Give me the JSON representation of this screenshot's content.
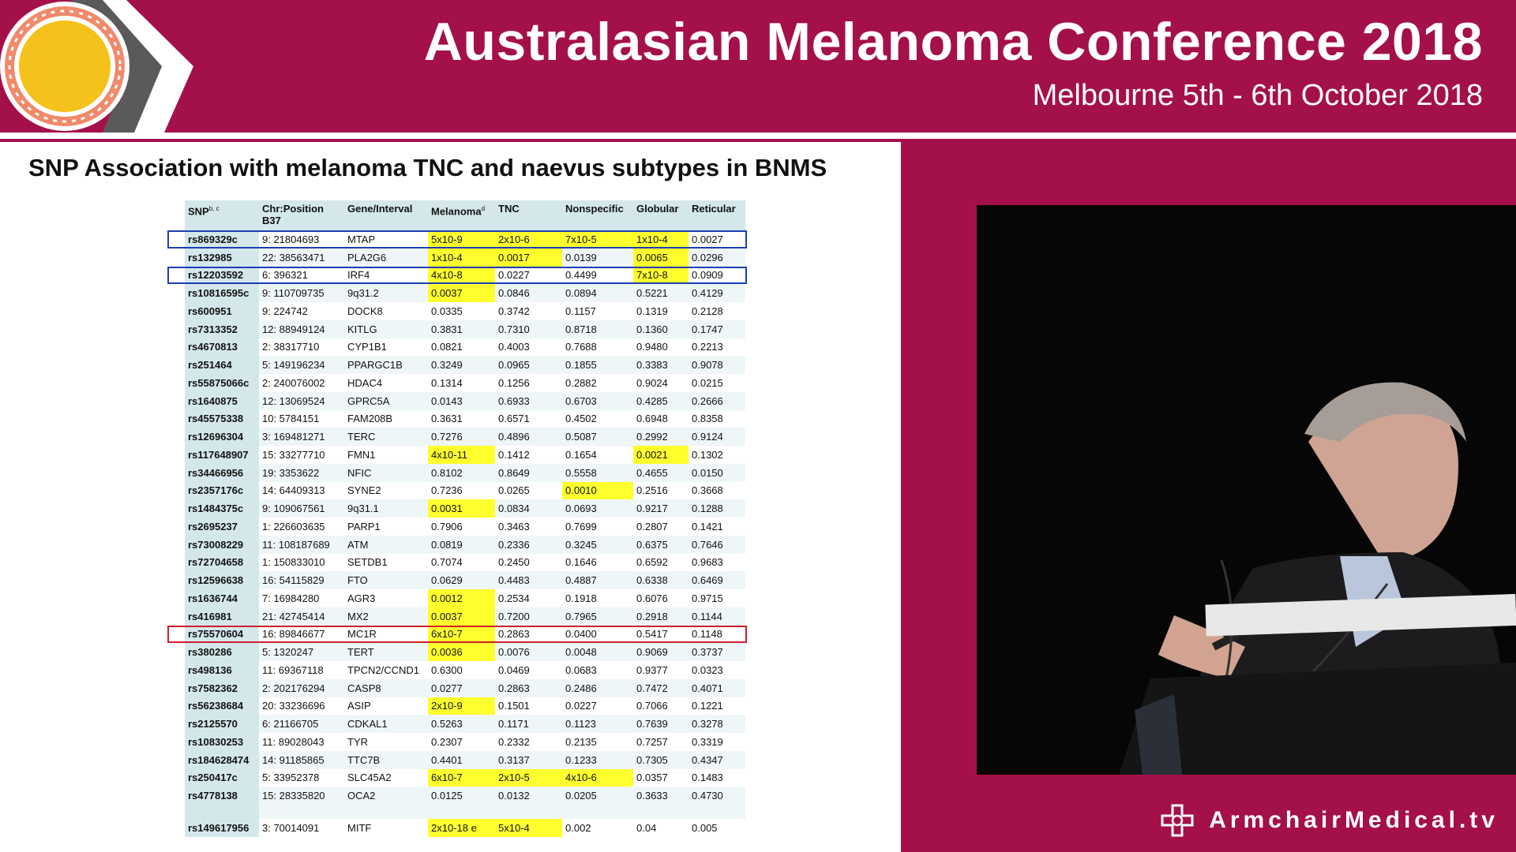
{
  "header": {
    "title": "Australasian Melanoma Conference 2018",
    "subtitle": "Melbourne 5th - 6th October 2018"
  },
  "slide": {
    "title": "SNP Association with melanoma TNC and naevus subtypes in BNMS",
    "columns": [
      "SNPb, c",
      "Chr:Position B37",
      "Gene/Interval",
      "Melanomad",
      "TNC",
      "Nonspecific",
      "Globular",
      "Reticular"
    ],
    "rows": [
      [
        "rs869329c",
        "9: 21804693",
        "MTAP",
        "5x10-9",
        "2x10-6",
        "7x10-5",
        "1x10-4",
        "0.0027"
      ],
      [
        "rs132985",
        "22: 38563471",
        "PLA2G6",
        "1x10-4",
        "0.0017",
        "0.0139",
        "0.0065",
        "0.0296"
      ],
      [
        "rs12203592",
        "6: 396321",
        "IRF4",
        "4x10-8",
        "0.0227",
        "0.4499",
        "7x10-8",
        "0.0909"
      ],
      [
        "rs10816595c",
        "9: 110709735",
        "9q31.2",
        "0.0037",
        "0.0846",
        "0.0894",
        "0.5221",
        "0.4129"
      ],
      [
        "rs600951",
        "9: 224742",
        "DOCK8",
        "0.0335",
        "0.3742",
        "0.1157",
        "0.1319",
        "0.2128"
      ],
      [
        "rs7313352",
        "12: 88949124",
        "KITLG",
        "0.3831",
        "0.7310",
        "0.8718",
        "0.1360",
        "0.1747"
      ],
      [
        "rs4670813",
        "2: 38317710",
        "CYP1B1",
        "0.0821",
        "0.4003",
        "0.7688",
        "0.9480",
        "0.2213"
      ],
      [
        "rs251464",
        "5: 149196234",
        "PPARGC1B",
        "0.3249",
        "0.0965",
        "0.1855",
        "0.3383",
        "0.9078"
      ],
      [
        "rs55875066c",
        "2: 240076002",
        "HDAC4",
        "0.1314",
        "0.1256",
        "0.2882",
        "0.9024",
        "0.0215"
      ],
      [
        "rs1640875",
        "12: 13069524",
        "GPRC5A",
        "0.0143",
        "0.6933",
        "0.6703",
        "0.4285",
        "0.2666"
      ],
      [
        "rs45575338",
        "10: 5784151",
        "FAM208B",
        "0.3631",
        "0.6571",
        "0.4502",
        "0.6948",
        "0.8358"
      ],
      [
        "rs12696304",
        "3: 169481271",
        "TERC",
        "0.7276",
        "0.4896",
        "0.5087",
        "0.2992",
        "0.9124"
      ],
      [
        "rs117648907",
        "15: 33277710",
        "FMN1",
        "4x10-11",
        "0.1412",
        "0.1654",
        "0.0021",
        "0.1302"
      ],
      [
        "rs34466956",
        "19: 3353622",
        "NFIC",
        "0.8102",
        "0.8649",
        "0.5558",
        "0.4655",
        "0.0150"
      ],
      [
        "rs2357176c",
        "14: 64409313",
        "SYNE2",
        "0.7236",
        "0.0265",
        "0.0010",
        "0.2516",
        "0.3668"
      ],
      [
        "rs1484375c",
        "9: 109067561",
        "9q31.1",
        "0.0031",
        "0.0834",
        "0.0693",
        "0.9217",
        "0.1288"
      ],
      [
        "rs2695237",
        "1: 226603635",
        "PARP1",
        "0.7906",
        "0.3463",
        "0.7699",
        "0.2807",
        "0.1421"
      ],
      [
        "rs73008229",
        "11: 108187689",
        "ATM",
        "0.0819",
        "0.2336",
        "0.3245",
        "0.6375",
        "0.7646"
      ],
      [
        "rs72704658",
        "1: 150833010",
        "SETDB1",
        "0.7074",
        "0.2450",
        "0.1646",
        "0.6592",
        "0.9683"
      ],
      [
        "rs12596638",
        "16: 54115829",
        "FTO",
        "0.0629",
        "0.4483",
        "0.4887",
        "0.6338",
        "0.6469"
      ],
      [
        "rs1636744",
        "7: 16984280",
        "AGR3",
        "0.0012",
        "0.2534",
        "0.1918",
        "0.6076",
        "0.9715"
      ],
      [
        "rs416981",
        "21: 42745414",
        "MX2",
        "0.0037",
        "0.7200",
        "0.7965",
        "0.2918",
        "0.1144"
      ],
      [
        "rs75570604",
        "16: 89846677",
        "MC1R",
        "6x10-7",
        "0.2863",
        "0.0400",
        "0.5417",
        "0.1148"
      ],
      [
        "rs380286",
        "5: 1320247",
        "TERT",
        "0.0036",
        "0.0076",
        "0.0048",
        "0.9069",
        "0.3737"
      ],
      [
        "rs498136",
        "11: 69367118",
        "TPCN2/CCND1",
        "0.6300",
        "0.0469",
        "0.0683",
        "0.9377",
        "0.0323"
      ],
      [
        "rs7582362",
        "2: 202176294",
        "CASP8",
        "0.0277",
        "0.2863",
        "0.2486",
        "0.7472",
        "0.4071"
      ],
      [
        "rs56238684",
        "20: 33236696",
        "ASIP",
        "2x10-9",
        "0.1501",
        "0.0227",
        "0.7066",
        "0.1221"
      ],
      [
        "rs2125570",
        "6: 21166705",
        "CDKAL1",
        "0.5263",
        "0.1171",
        "0.1123",
        "0.7639",
        "0.3278"
      ],
      [
        "rs10830253",
        "11: 89028043",
        "TYR",
        "0.2307",
        "0.2332",
        "0.2135",
        "0.7257",
        "0.3319"
      ],
      [
        "rs184628474",
        "14: 91185865",
        "TTC7B",
        "0.4401",
        "0.3137",
        "0.1233",
        "0.7305",
        "0.4347"
      ],
      [
        "rs250417c",
        "5: 33952378",
        "SLC45A2",
        "6x10-7",
        "2x10-5",
        "4x10-6",
        "0.0357",
        "0.1483"
      ],
      [
        "rs4778138",
        "15: 28335820",
        "OCA2",
        "0.0125",
        "0.0132",
        "0.0205",
        "0.3633",
        "0.4730"
      ],
      [
        "rs149617956",
        "3: 70014091",
        "MITF",
        "2x10-18 e",
        "5x10-4",
        "0.002",
        "0.04",
        "0.005"
      ]
    ],
    "highlighted_cells": [
      [
        0,
        3
      ],
      [
        0,
        4
      ],
      [
        0,
        5
      ],
      [
        0,
        6
      ],
      [
        1,
        3
      ],
      [
        1,
        4
      ],
      [
        1,
        6
      ],
      [
        2,
        3
      ],
      [
        2,
        6
      ],
      [
        3,
        3
      ],
      [
        12,
        3
      ],
      [
        12,
        6
      ],
      [
        14,
        5
      ],
      [
        15,
        3
      ],
      [
        20,
        3
      ],
      [
        21,
        3
      ],
      [
        22,
        3
      ],
      [
        23,
        3
      ],
      [
        26,
        3
      ],
      [
        30,
        3
      ],
      [
        30,
        4
      ],
      [
        30,
        5
      ],
      [
        32,
        3
      ],
      [
        32,
        4
      ]
    ],
    "boxed_rows": [
      {
        "row": 0,
        "color": "#1c3fb5"
      },
      {
        "row": 2,
        "color": "#1c3fb5"
      },
      {
        "row": 22,
        "color": "#d01e2a"
      }
    ],
    "colors": {
      "highlight": "#ffff2e",
      "header_bg": "#d4e8ec",
      "accent": "#a4104a"
    }
  },
  "brand": {
    "name": "ArmchairMedical.tv"
  }
}
